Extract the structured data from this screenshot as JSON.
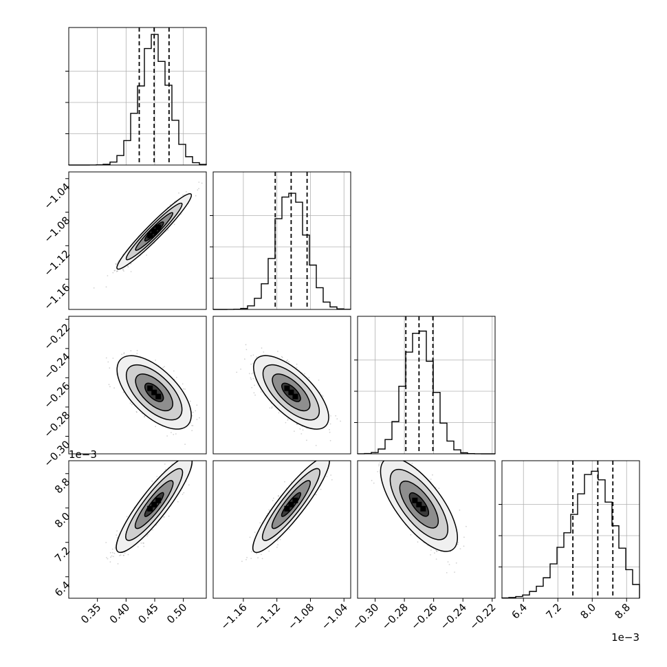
{
  "figure": {
    "exponent_label_top": "1e−3",
    "exponent_label_right": "1e−3"
  },
  "chart_data": {
    "type": "corner",
    "grid": true,
    "parameters": [
      {
        "range": [
          0.3,
          0.54
        ],
        "ticks": [
          0.35,
          0.4,
          0.45,
          0.5
        ],
        "tick_labels": [
          "0.35",
          "0.40",
          "0.45",
          "0.50"
        ],
        "quantiles": [
          0.423,
          0.449,
          0.475
        ],
        "mean": 0.449,
        "sd": 0.026
      },
      {
        "range": [
          -1.196,
          -1.032
        ],
        "ticks": [
          -1.16,
          -1.12,
          -1.08,
          -1.04
        ],
        "tick_labels": [
          "−1.16",
          "−1.12",
          "−1.08",
          "−1.04"
        ],
        "quantiles": [
          -1.122,
          -1.103,
          -1.084
        ],
        "mean": -1.103,
        "sd": 0.018
      },
      {
        "range": [
          -0.312,
          -0.218
        ],
        "ticks": [
          -0.3,
          -0.28,
          -0.26,
          -0.24,
          -0.22
        ],
        "tick_labels": [
          "−0.30",
          "−0.28",
          "−0.26",
          "−0.24",
          "−0.22"
        ],
        "quantiles": [
          -0.279,
          -0.27,
          -0.2605
        ],
        "mean": -0.27,
        "sd": 0.01
      },
      {
        "range": [
          5.9,
          9.1
        ],
        "ticks": [
          6.4,
          7.2,
          8.0,
          8.8
        ],
        "tick_labels": [
          "6.4",
          "7.2",
          "8.0",
          "8.8"
        ],
        "quantiles": [
          7.55,
          8.13,
          8.48
        ],
        "mean": 8.08,
        "sd": 0.45
      }
    ],
    "correlations": [
      {
        "pair": [
          0,
          1
        ],
        "rho": 0.96
      },
      {
        "pair": [
          0,
          2
        ],
        "rho": -0.62
      },
      {
        "pair": [
          1,
          2
        ],
        "rho": -0.68
      },
      {
        "pair": [
          0,
          3
        ],
        "rho": 0.9
      },
      {
        "pair": [
          1,
          3
        ],
        "rho": 0.91
      },
      {
        "pair": [
          2,
          3
        ],
        "rho": -0.72
      }
    ],
    "histogram_bins": 20,
    "contour_levels_sigma": [
      0.5,
      1.0,
      1.5,
      2.0
    ]
  },
  "colors": {
    "line": "#000000",
    "grid": "#b0b0b0",
    "scatter": "#9a9a9a",
    "background": "#ffffff"
  }
}
